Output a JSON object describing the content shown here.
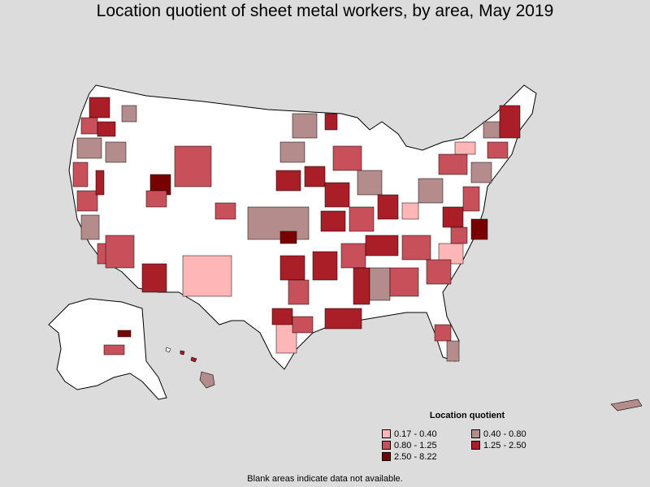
{
  "title": "Location quotient of sheet metal workers, by area, May 2019",
  "legend": {
    "title": "Location quotient",
    "items": [
      {
        "label": "0.17 - 0.40",
        "color": "#ffb6b6"
      },
      {
        "label": "0.40 - 0.80",
        "color": "#b48c8c"
      },
      {
        "label": "0.80 - 1.25",
        "color": "#c8505a"
      },
      {
        "label": "1.25 - 2.50",
        "color": "#aa1e28"
      },
      {
        "label": "2.50 - 8.22",
        "color": "#780000"
      }
    ]
  },
  "footnote": "Blank areas indicate data not available.",
  "colors": {
    "background": "#dcdcdc",
    "no_data": "#ffffff",
    "border": "#000000"
  }
}
